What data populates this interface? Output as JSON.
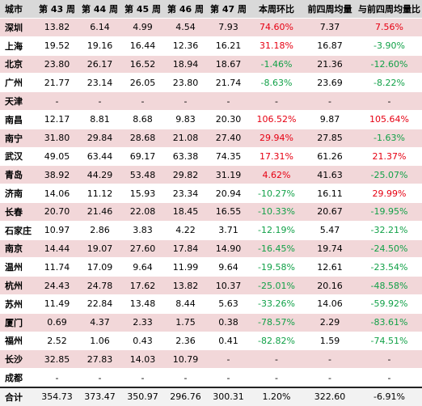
{
  "columns": [
    "城市",
    "第 43 周",
    "第 44 周",
    "第 45 周",
    "第 46 周",
    "第 47 周",
    "本周环比",
    "前四周均量",
    "与前四周均量比"
  ],
  "colors": {
    "pink_row": "#f2d7d9",
    "header": "#d9d9d9",
    "positive": "#e60012",
    "negative": "#12a148"
  },
  "rows": [
    {
      "city": "深圳",
      "cells": [
        "13.82",
        "6.14",
        "4.99",
        "4.54",
        "7.93",
        "74.60%",
        "7.37",
        "7.56%"
      ],
      "wow_sign": "pos",
      "avg_sign": "pos"
    },
    {
      "city": "上海",
      "cells": [
        "19.52",
        "19.16",
        "16.44",
        "12.36",
        "16.21",
        "31.18%",
        "16.87",
        "-3.90%"
      ],
      "wow_sign": "pos",
      "avg_sign": "neg"
    },
    {
      "city": "北京",
      "cells": [
        "23.80",
        "26.17",
        "16.52",
        "18.94",
        "18.67",
        "-1.46%",
        "21.36",
        "-12.60%"
      ],
      "wow_sign": "neg",
      "avg_sign": "neg"
    },
    {
      "city": "广州",
      "cells": [
        "21.77",
        "23.14",
        "26.05",
        "23.80",
        "21.74",
        "-8.63%",
        "23.69",
        "-8.22%"
      ],
      "wow_sign": "neg",
      "avg_sign": "neg"
    },
    {
      "city": "天津",
      "cells": [
        "-",
        "-",
        "-",
        "-",
        "-",
        "-",
        "-",
        "-"
      ],
      "wow_sign": "none",
      "avg_sign": "none"
    },
    {
      "city": "南昌",
      "cells": [
        "12.17",
        "8.81",
        "8.68",
        "9.83",
        "20.30",
        "106.52%",
        "9.87",
        "105.64%"
      ],
      "wow_sign": "pos",
      "avg_sign": "pos"
    },
    {
      "city": "南宁",
      "cells": [
        "31.80",
        "29.84",
        "28.68",
        "21.08",
        "27.40",
        "29.94%",
        "27.85",
        "-1.63%"
      ],
      "wow_sign": "pos",
      "avg_sign": "neg"
    },
    {
      "city": "武汉",
      "cells": [
        "49.05",
        "63.44",
        "69.17",
        "63.38",
        "74.35",
        "17.31%",
        "61.26",
        "21.37%"
      ],
      "wow_sign": "pos",
      "avg_sign": "pos"
    },
    {
      "city": "青岛",
      "cells": [
        "38.92",
        "44.29",
        "53.48",
        "29.82",
        "31.19",
        "4.62%",
        "41.63",
        "-25.07%"
      ],
      "wow_sign": "pos",
      "avg_sign": "neg"
    },
    {
      "city": "济南",
      "cells": [
        "14.06",
        "11.12",
        "15.93",
        "23.34",
        "20.94",
        "-10.27%",
        "16.11",
        "29.99%"
      ],
      "wow_sign": "neg",
      "avg_sign": "pos"
    },
    {
      "city": "长春",
      "cells": [
        "20.70",
        "21.46",
        "22.08",
        "18.45",
        "16.55",
        "-10.33%",
        "20.67",
        "-19.95%"
      ],
      "wow_sign": "neg",
      "avg_sign": "neg"
    },
    {
      "city": "石家庄",
      "cells": [
        "10.97",
        "2.86",
        "3.83",
        "4.22",
        "3.71",
        "-12.19%",
        "5.47",
        "-32.21%"
      ],
      "wow_sign": "neg",
      "avg_sign": "neg"
    },
    {
      "city": "南京",
      "cells": [
        "14.44",
        "19.07",
        "27.60",
        "17.84",
        "14.90",
        "-16.45%",
        "19.74",
        "-24.50%"
      ],
      "wow_sign": "neg",
      "avg_sign": "neg"
    },
    {
      "city": "温州",
      "cells": [
        "11.74",
        "17.09",
        "9.64",
        "11.99",
        "9.64",
        "-19.58%",
        "12.61",
        "-23.54%"
      ],
      "wow_sign": "neg",
      "avg_sign": "neg"
    },
    {
      "city": "杭州",
      "cells": [
        "24.43",
        "24.78",
        "17.62",
        "13.82",
        "10.37",
        "-25.01%",
        "20.16",
        "-48.58%"
      ],
      "wow_sign": "neg",
      "avg_sign": "neg"
    },
    {
      "city": "苏州",
      "cells": [
        "11.49",
        "22.84",
        "13.48",
        "8.44",
        "5.63",
        "-33.26%",
        "14.06",
        "-59.92%"
      ],
      "wow_sign": "neg",
      "avg_sign": "neg"
    },
    {
      "city": "厦门",
      "cells": [
        "0.69",
        "4.37",
        "2.33",
        "1.75",
        "0.38",
        "-78.57%",
        "2.29",
        "-83.61%"
      ],
      "wow_sign": "neg",
      "avg_sign": "neg"
    },
    {
      "city": "福州",
      "cells": [
        "2.52",
        "1.06",
        "0.43",
        "2.36",
        "0.41",
        "-82.82%",
        "1.59",
        "-74.51%"
      ],
      "wow_sign": "neg",
      "avg_sign": "neg"
    },
    {
      "city": "长沙",
      "cells": [
        "32.85",
        "27.83",
        "14.03",
        "10.79",
        "-",
        "-",
        "-",
        "-"
      ],
      "wow_sign": "none",
      "avg_sign": "none"
    },
    {
      "city": "成都",
      "cells": [
        "-",
        "-",
        "-",
        "-",
        "-",
        "-",
        "-",
        "-"
      ],
      "wow_sign": "none",
      "avg_sign": "none"
    }
  ],
  "total": {
    "city": "合计",
    "cells": [
      "354.73",
      "373.47",
      "350.97",
      "296.76",
      "300.31",
      "1.20%",
      "322.60",
      "-6.91%"
    ]
  }
}
